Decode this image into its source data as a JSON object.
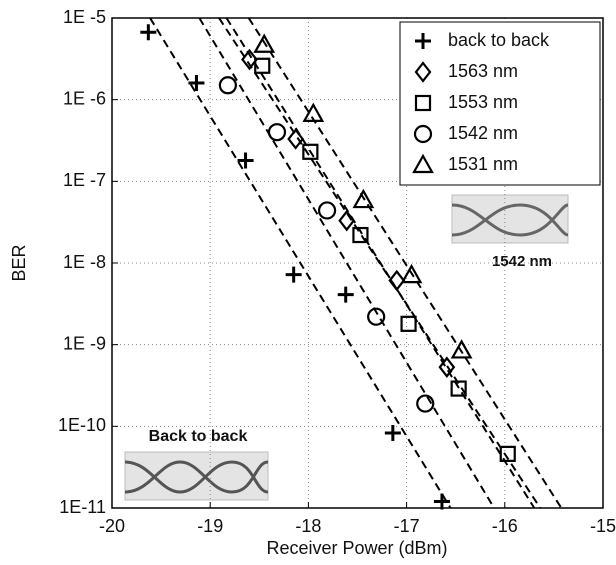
{
  "chart_data": {
    "type": "scatter",
    "xlabel": "Receiver Power (dBm)",
    "ylabel": "BER",
    "xlim": [
      -20,
      -15
    ],
    "xticks": [
      -20,
      -19,
      -18,
      -17,
      -16,
      -15
    ],
    "ylim": [
      1e-11,
      1e-05
    ],
    "ylog": true,
    "yticks": [
      {
        "value": 1e-11,
        "label": "1E-11"
      },
      {
        "value": 1e-10,
        "label": "1E-10"
      },
      {
        "value": 1e-09,
        "label": "1E -9"
      },
      {
        "value": 1e-08,
        "label": "1E -8"
      },
      {
        "value": 1e-07,
        "label": "1E -7"
      },
      {
        "value": 1e-06,
        "label": "1E -6"
      },
      {
        "value": 1e-05,
        "label": "1E -5"
      }
    ],
    "grid": true,
    "legend": "upper right",
    "fit_lines": true,
    "annotations": [
      "1542 nm",
      "Back to back"
    ],
    "series": [
      {
        "name": "back to back",
        "marker": "plus",
        "color": "#000000",
        "x": [
          -19.63,
          -19.14,
          -18.64,
          -18.15,
          -17.62,
          -17.14,
          -16.64
        ],
        "values": [
          6.7e-06,
          1.6e-06,
          1.8e-07,
          7.2e-09,
          4.1e-09,
          8.3e-11,
          1.2e-11
        ]
      },
      {
        "name": "1563 nm",
        "marker": "diamond",
        "color": "#000000",
        "x": [
          -18.6,
          -18.13,
          -17.61,
          -17.1,
          -16.59
        ],
        "values": [
          3.1e-06,
          3.3e-07,
          3.3e-08,
          6.1e-09,
          5.3e-10
        ]
      },
      {
        "name": "1553 nm",
        "marker": "square",
        "color": "#000000",
        "x": [
          -18.47,
          -17.98,
          -17.47,
          -16.98,
          -16.47,
          -15.97
        ],
        "values": [
          2.6e-06,
          2.3e-07,
          2.2e-08,
          1.8e-09,
          2.9e-10,
          4.6e-11
        ]
      },
      {
        "name": "1542 nm",
        "marker": "circle",
        "color": "#000000",
        "x": [
          -18.82,
          -18.32,
          -17.81,
          -17.31,
          -16.81
        ],
        "values": [
          1.5e-06,
          4e-07,
          4.4e-08,
          2.2e-09,
          1.9e-10
        ]
      },
      {
        "name": "1531 nm",
        "marker": "triangle",
        "color": "#000000",
        "x": [
          -18.45,
          -17.95,
          -17.44,
          -16.95,
          -16.44
        ],
        "values": [
          4.7e-06,
          6.7e-07,
          5.9e-08,
          7.1e-09,
          8.5e-10
        ]
      }
    ]
  }
}
